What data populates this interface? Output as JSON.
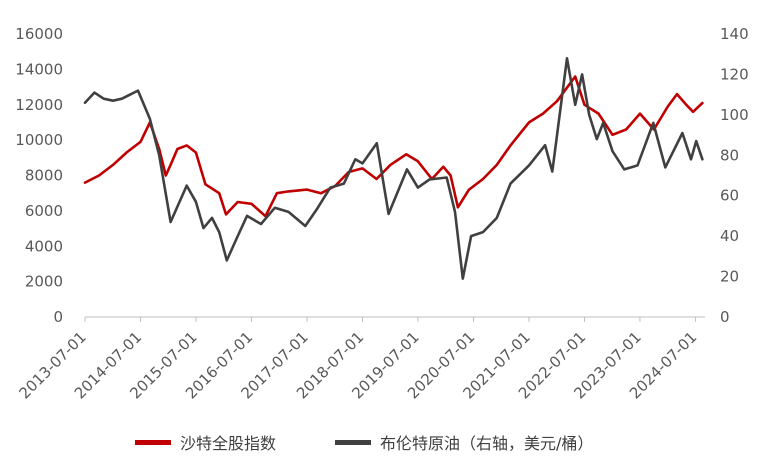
{
  "chart_data": {
    "type": "line",
    "title": "",
    "xlabel": "",
    "ylabel_left": "",
    "ylabel_right": "",
    "grid": false,
    "legend_position": "bottom",
    "x_ticks": [
      "2013-07-01",
      "2014-07-01",
      "2015-07-01",
      "2016-07-01",
      "2017-07-01",
      "2018-07-01",
      "2019-07-01",
      "2020-07-01",
      "2021-07-01",
      "2022-07-01",
      "2023-07-01",
      "2024-07-01"
    ],
    "xlim": [
      "2013-07-01",
      "2024-09-01"
    ],
    "ylim_left": [
      0,
      16000
    ],
    "yticks_left": [
      "0",
      "2000",
      "4000",
      "6000",
      "8000",
      "10000",
      "12000",
      "14000",
      "16000"
    ],
    "ylim_right": [
      0,
      140
    ],
    "yticks_right": [
      "0",
      "20",
      "40",
      "60",
      "80",
      "100",
      "120",
      "140"
    ],
    "series": [
      {
        "name": "沙特全股指数",
        "axis": "left",
        "color": "#C00000",
        "points": [
          [
            "2013-07-01",
            7600
          ],
          [
            "2013-10-01",
            8000
          ],
          [
            "2014-01-01",
            8600
          ],
          [
            "2014-04-01",
            9300
          ],
          [
            "2014-07-01",
            9900
          ],
          [
            "2014-09-01",
            11000
          ],
          [
            "2014-11-01",
            9500
          ],
          [
            "2014-12-15",
            8000
          ],
          [
            "2015-01-15",
            8600
          ],
          [
            "2015-03-01",
            9500
          ],
          [
            "2015-05-01",
            9700
          ],
          [
            "2015-07-01",
            9300
          ],
          [
            "2015-09-01",
            7500
          ],
          [
            "2015-12-01",
            7000
          ],
          [
            "2016-01-15",
            5800
          ],
          [
            "2016-04-01",
            6500
          ],
          [
            "2016-07-01",
            6400
          ],
          [
            "2016-10-01",
            5700
          ],
          [
            "2016-12-15",
            7000
          ],
          [
            "2017-03-01",
            7100
          ],
          [
            "2017-07-01",
            7200
          ],
          [
            "2017-10-01",
            7000
          ],
          [
            "2018-01-01",
            7400
          ],
          [
            "2018-04-01",
            8200
          ],
          [
            "2018-07-01",
            8400
          ],
          [
            "2018-10-01",
            7800
          ],
          [
            "2019-01-01",
            8600
          ],
          [
            "2019-04-15",
            9200
          ],
          [
            "2019-07-01",
            8800
          ],
          [
            "2019-10-01",
            7800
          ],
          [
            "2019-12-15",
            8500
          ],
          [
            "2020-02-01",
            8000
          ],
          [
            "2020-03-20",
            6200
          ],
          [
            "2020-06-01",
            7200
          ],
          [
            "2020-09-01",
            7800
          ],
          [
            "2020-12-01",
            8600
          ],
          [
            "2021-03-01",
            9700
          ],
          [
            "2021-07-01",
            11000
          ],
          [
            "2021-10-01",
            11500
          ],
          [
            "2022-01-01",
            12200
          ],
          [
            "2022-05-01",
            13600
          ],
          [
            "2022-07-01",
            12000
          ],
          [
            "2022-10-01",
            11500
          ],
          [
            "2023-01-01",
            10300
          ],
          [
            "2023-04-01",
            10600
          ],
          [
            "2023-07-01",
            11500
          ],
          [
            "2023-10-01",
            10600
          ],
          [
            "2023-12-31",
            11900
          ],
          [
            "2024-03-01",
            12600
          ],
          [
            "2024-05-01",
            12000
          ],
          [
            "2024-06-15",
            11600
          ],
          [
            "2024-08-15",
            12100
          ]
        ]
      },
      {
        "name": "布伦特原油（右轴，美元/桶）",
        "axis": "right",
        "color": "#404040",
        "points": [
          [
            "2013-07-01",
            106
          ],
          [
            "2013-09-01",
            111
          ],
          [
            "2013-11-01",
            108
          ],
          [
            "2014-01-01",
            107
          ],
          [
            "2014-03-01",
            108
          ],
          [
            "2014-06-15",
            112
          ],
          [
            "2014-09-01",
            98
          ],
          [
            "2014-11-01",
            80
          ],
          [
            "2015-01-15",
            47
          ],
          [
            "2015-05-01",
            65
          ],
          [
            "2015-07-01",
            57
          ],
          [
            "2015-08-20",
            44
          ],
          [
            "2015-10-15",
            49
          ],
          [
            "2015-12-01",
            42
          ],
          [
            "2016-01-20",
            28
          ],
          [
            "2016-04-01",
            40
          ],
          [
            "2016-06-01",
            50
          ],
          [
            "2016-09-01",
            46
          ],
          [
            "2016-12-01",
            54
          ],
          [
            "2017-03-01",
            52
          ],
          [
            "2017-06-20",
            45
          ],
          [
            "2017-09-01",
            53
          ],
          [
            "2017-12-01",
            64
          ],
          [
            "2018-03-01",
            66
          ],
          [
            "2018-05-15",
            78
          ],
          [
            "2018-07-01",
            76
          ],
          [
            "2018-10-03",
            86
          ],
          [
            "2018-12-20",
            51
          ],
          [
            "2019-04-20",
            73
          ],
          [
            "2019-07-01",
            64
          ],
          [
            "2019-09-15",
            68
          ],
          [
            "2020-01-06",
            69
          ],
          [
            "2020-03-01",
            52
          ],
          [
            "2020-04-21",
            19
          ],
          [
            "2020-06-15",
            40
          ],
          [
            "2020-09-01",
            42
          ],
          [
            "2020-12-01",
            49
          ],
          [
            "2021-03-01",
            66
          ],
          [
            "2021-07-01",
            75
          ],
          [
            "2021-10-15",
            85
          ],
          [
            "2021-12-01",
            72
          ],
          [
            "2022-03-08",
            128
          ],
          [
            "2022-05-01",
            105
          ],
          [
            "2022-06-15",
            120
          ],
          [
            "2022-08-01",
            100
          ],
          [
            "2022-09-20",
            88
          ],
          [
            "2022-11-01",
            96
          ],
          [
            "2023-01-01",
            82
          ],
          [
            "2023-03-20",
            73
          ],
          [
            "2023-06-15",
            75
          ],
          [
            "2023-09-27",
            96
          ],
          [
            "2023-12-15",
            74
          ],
          [
            "2024-04-05",
            91
          ],
          [
            "2024-06-01",
            78
          ],
          [
            "2024-07-05",
            87
          ],
          [
            "2024-08-15",
            78
          ]
        ]
      }
    ]
  }
}
